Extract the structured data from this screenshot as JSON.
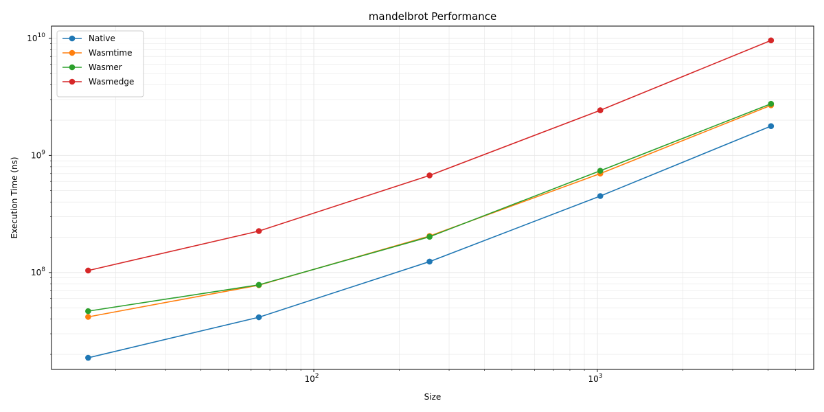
{
  "chart_data": {
    "type": "line",
    "title": "mandelbrot Performance",
    "xlabel": "Size",
    "ylabel": "Execution Time (ns)",
    "xscale": "log",
    "yscale": "log",
    "x": [
      16,
      64,
      256,
      1024,
      4096
    ],
    "xticks": [
      {
        "base": "10",
        "exp": "2",
        "value": 100
      },
      {
        "base": "10",
        "exp": "3",
        "value": 1000
      }
    ],
    "yticks": [
      {
        "base": "10",
        "exp": "8",
        "value": 100000000
      },
      {
        "base": "10",
        "exp": "9",
        "value": 1000000000
      },
      {
        "base": "10",
        "exp": "10",
        "value": 10000000000
      }
    ],
    "grid": true,
    "legend_position": "top-left",
    "series": [
      {
        "name": "Native",
        "color": "#1f77b4",
        "values": [
          18700000,
          41500000,
          124000000,
          450000000,
          1780000000
        ]
      },
      {
        "name": "Wasmtime",
        "color": "#ff7f0e",
        "values": [
          41800000,
          78000000,
          205000000,
          700000000,
          2680000000
        ]
      },
      {
        "name": "Wasmer",
        "color": "#2ca02c",
        "values": [
          46800000,
          78500000,
          202000000,
          740000000,
          2760000000
        ]
      },
      {
        "name": "Wasmedge",
        "color": "#d62728",
        "values": [
          104000000,
          226000000,
          675000000,
          2430000000,
          9600000000
        ]
      }
    ]
  }
}
